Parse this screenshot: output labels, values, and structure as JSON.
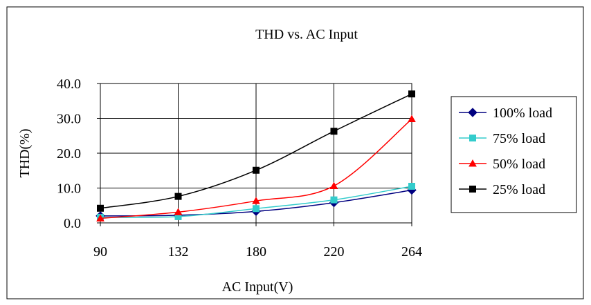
{
  "chart_data": {
    "type": "line",
    "title": "THD vs. AC Input",
    "xlabel": "AC Input(V)",
    "ylabel": "THD(%)",
    "x_ticks": [
      "90",
      "132",
      "180",
      "220",
      "264"
    ],
    "y_ticks": [
      "0.0",
      "10.0",
      "20.0",
      "30.0",
      "40.0"
    ],
    "x": [
      90,
      132,
      180,
      220,
      264
    ],
    "ylim": [
      0,
      40
    ],
    "grid": true,
    "legend_position": "right",
    "series": [
      {
        "name": "100% load",
        "color": "#000080",
        "marker": "diamond",
        "values": [
          2.0,
          2.2,
          3.3,
          5.8,
          9.4
        ]
      },
      {
        "name": "75% load",
        "color": "#33cccc",
        "marker": "square",
        "values": [
          1.6,
          1.8,
          4.1,
          6.6,
          10.5
        ]
      },
      {
        "name": "50% load",
        "color": "#ff0000",
        "marker": "triangle",
        "values": [
          1.3,
          3.1,
          6.3,
          10.6,
          29.8
        ]
      },
      {
        "name": "25% load",
        "color": "#000000",
        "marker": "square",
        "values": [
          4.2,
          7.6,
          15.1,
          26.3,
          37.0
        ]
      }
    ]
  }
}
